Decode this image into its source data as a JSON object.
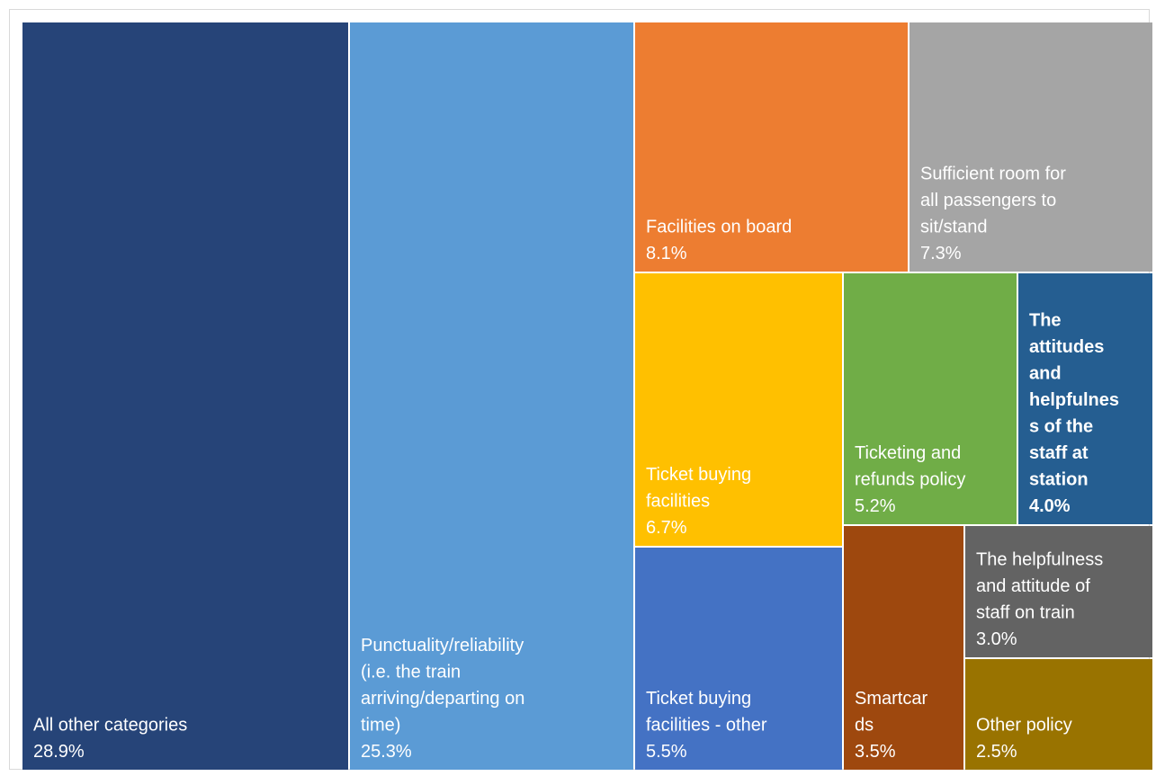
{
  "chart_data": {
    "type": "treemap",
    "title": "",
    "unit": "%",
    "tiles": [
      {
        "label_lines": [
          "All other categories"
        ],
        "value_text": "28.9%",
        "value": 28.9,
        "color": "#264478"
      },
      {
        "label_lines": [
          "Punctuality/reliability",
          "(i.e. the train",
          "arriving/departing on",
          "time)"
        ],
        "value_text": "25.3%",
        "value": 25.3,
        "color": "#5B9BD5"
      },
      {
        "label_lines": [
          "Facilities on board"
        ],
        "value_text": "8.1%",
        "value": 8.1,
        "color": "#ED7D31"
      },
      {
        "label_lines": [
          "Sufficient room for",
          "all passengers to",
          "sit/stand"
        ],
        "value_text": "7.3%",
        "value": 7.3,
        "color": "#A5A5A5"
      },
      {
        "label_lines": [
          "Ticket buying",
          "facilities"
        ],
        "value_text": "6.7%",
        "value": 6.7,
        "color": "#FFC000"
      },
      {
        "label_lines": [
          "Ticket buying",
          "facilities - other"
        ],
        "value_text": "5.5%",
        "value": 5.5,
        "color": "#4472C4"
      },
      {
        "label_lines": [
          "Ticketing and",
          "refunds policy"
        ],
        "value_text": "5.2%",
        "value": 5.2,
        "color": "#70AD47"
      },
      {
        "label_lines": [
          "The",
          "attitudes",
          "and",
          "helpfulnes",
          "s of the",
          "staff at",
          "station"
        ],
        "value_text": "4.0%",
        "value": 4.0,
        "color": "#255E91"
      },
      {
        "label_lines": [
          "Smartcar",
          "ds"
        ],
        "value_text": "3.5%",
        "value": 3.5,
        "color": "#9E480E"
      },
      {
        "label_lines": [
          "The helpfulness",
          "and attitude of",
          "staff on train"
        ],
        "value_text": "3.0%",
        "value": 3.0,
        "color": "#636363"
      },
      {
        "label_lines": [
          "Other policy"
        ],
        "value_text": "2.5%",
        "value": 2.5,
        "color": "#997300"
      }
    ]
  }
}
